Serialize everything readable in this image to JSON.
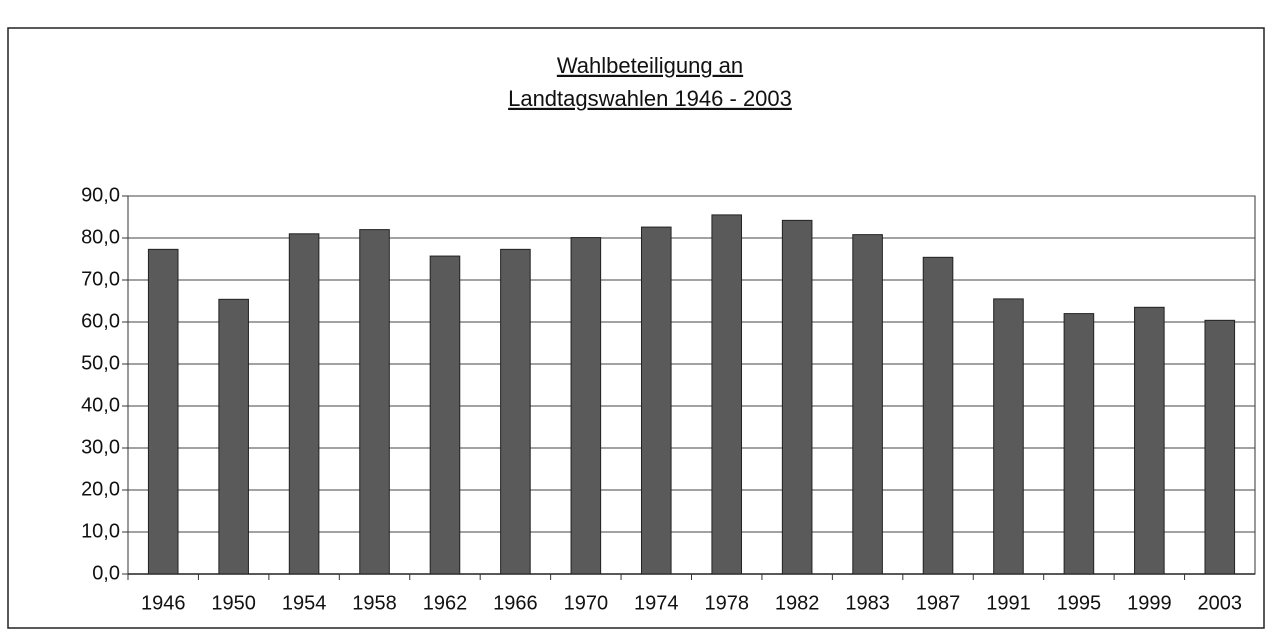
{
  "chart_data": {
    "type": "bar",
    "title": [
      "Wahlbeteiligung an",
      "Landtagswahlen 1946 - 2003"
    ],
    "categories": [
      "1946",
      "1950",
      "1954",
      "1958",
      "1962",
      "1966",
      "1970",
      "1974",
      "1978",
      "1982",
      "1983",
      "1987",
      "1991",
      "1995",
      "1999",
      "2003"
    ],
    "values": [
      77.3,
      65.4,
      81.0,
      82.0,
      75.7,
      77.3,
      80.1,
      82.6,
      85.5,
      84.2,
      80.8,
      75.4,
      65.5,
      62.0,
      63.5,
      60.4
    ],
    "color": "#5a5a5a",
    "ylim": [
      0,
      90
    ],
    "yticks": [
      {
        "value": 0,
        "label": "0,0"
      },
      {
        "value": 10,
        "label": "10,0"
      },
      {
        "value": 20,
        "label": "20,0"
      },
      {
        "value": 30,
        "label": "30,0"
      },
      {
        "value": 40,
        "label": "40,0"
      },
      {
        "value": 50,
        "label": "50,0"
      },
      {
        "value": 60,
        "label": "60,0"
      },
      {
        "value": 70,
        "label": "70,0"
      },
      {
        "value": 80,
        "label": "80,0"
      },
      {
        "value": 90,
        "label": "90,0"
      }
    ],
    "grid": true
  }
}
